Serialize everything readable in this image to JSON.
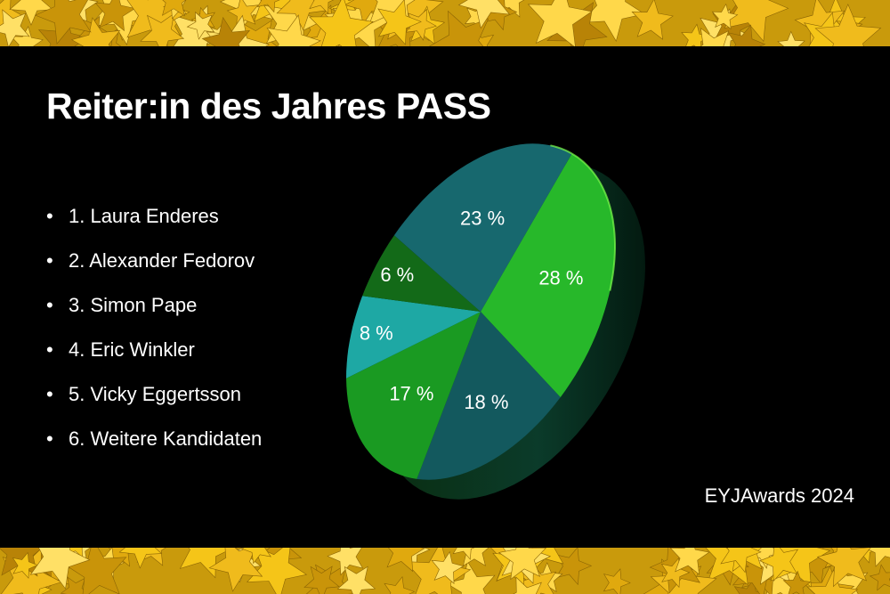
{
  "title": "Reiter:in des Jahres PASS",
  "footer": "EYJAwards 2024",
  "legend": [
    "1. Laura Enderes",
    "2. Alexander Fedorov",
    "3. Simon Pape",
    "4. Eric Winkler",
    "5. Vicky Eggertsson",
    "6. Weitere Kandidaten"
  ],
  "chart_data": {
    "type": "pie",
    "categories": [
      "Laura Enderes",
      "Alexander Fedorov",
      "Simon Pape",
      "Eric Winkler",
      "Vicky Eggertsson",
      "Weitere Kandidaten"
    ],
    "values": [
      28,
      18,
      17,
      8,
      6,
      23
    ],
    "labels": [
      "28 %",
      "18 %",
      "17 %",
      "8 %",
      "6 %",
      "23 %"
    ],
    "colors": [
      "#27b82a",
      "#13595e",
      "#1a9a22",
      "#1ea8a4",
      "#136a18",
      "#17686e"
    ],
    "legend_position": "left"
  }
}
